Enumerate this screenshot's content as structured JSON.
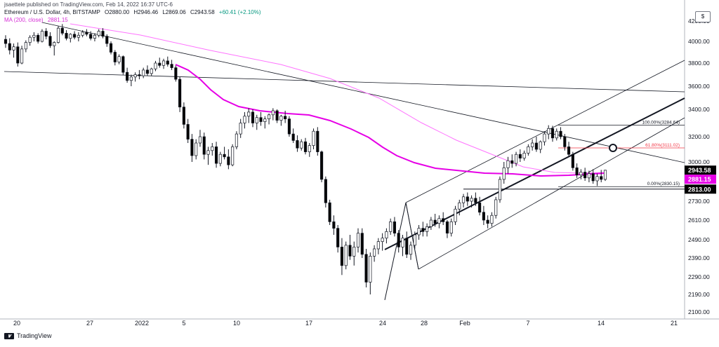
{
  "header": {
    "publish_line": "jsaettele published on TradingView.com, Feb 14, 2022 16:37 UTC-6",
    "symbol": "Ethereum / U.S. Dollar, 4h, BITSTAMP",
    "open": "O2880.00",
    "high": "H2946.46",
    "low": "L2869.06",
    "close": "C2943.58",
    "change": "+60.41 (+2.10%)",
    "ma_label": "MA (200, close)",
    "ma_value": "2881.15"
  },
  "footer": {
    "brand": "TradingView"
  },
  "axis_mark": "$",
  "colors": {
    "up": "#ffffff",
    "down": "#000000",
    "ma_fast": "#e600e6",
    "ma_slow": "#ff73ff",
    "fib_red": "#f23645",
    "trend": "#131722",
    "grid": "#f0f3fa"
  },
  "chart_data": {
    "type": "candlestick",
    "price_axis": {
      "ticks": [
        2100,
        2190,
        2290,
        2390,
        2490,
        2610,
        2730,
        3000,
        3200,
        3400,
        3600,
        3800,
        4000,
        4200
      ],
      "tick_labels": [
        "2100.00",
        "2190.00",
        "2290.00",
        "2390.00",
        "2490.00",
        "2610.00",
        "2730.00",
        "3000.00",
        "3200.00",
        "3400.00",
        "3600.00",
        "3800.00",
        "4000.00",
        "4200.00"
      ]
    },
    "time_axis": {
      "labels": [
        "20",
        "27",
        "2022",
        "5",
        "10",
        "17",
        "24",
        "28",
        "Feb",
        "7",
        "14",
        "21"
      ]
    },
    "price_badges": [
      {
        "value": 2943.58,
        "label": "2943.58",
        "bg": "#000000",
        "fg": "#ffffff"
      },
      {
        "value": 2881.15,
        "label": "2881.15",
        "bg": "#e600e6",
        "fg": "#ffffff"
      },
      {
        "value": 2813.0,
        "label": "2813.00",
        "bg": "#000000",
        "fg": "#ffffff"
      }
    ],
    "fibonacci": [
      {
        "label": "100.00%(3284.64)",
        "value": 3284.64,
        "color": "#131722"
      },
      {
        "label": "61.80%(3111.02)",
        "value": 3111.02,
        "color": "#f23645"
      },
      {
        "label": "0.00%(2830.15)",
        "value": 2830.15,
        "color": "#131722"
      }
    ],
    "horizontal_line": {
      "value": 2813.0
    },
    "candles": [
      {
        "o": 4020,
        "h": 4060,
        "l": 3940,
        "c": 3980
      },
      {
        "o": 3980,
        "h": 4030,
        "l": 3880,
        "c": 3920
      },
      {
        "o": 3920,
        "h": 3980,
        "l": 3850,
        "c": 3950
      },
      {
        "o": 3950,
        "h": 3990,
        "l": 3770,
        "c": 3800
      },
      {
        "o": 3800,
        "h": 3960,
        "l": 3790,
        "c": 3930
      },
      {
        "o": 3930,
        "h": 4010,
        "l": 3900,
        "c": 3990
      },
      {
        "o": 3990,
        "h": 4060,
        "l": 3960,
        "c": 4040
      },
      {
        "o": 4040,
        "h": 4090,
        "l": 4000,
        "c": 4060
      },
      {
        "o": 4060,
        "h": 4080,
        "l": 3980,
        "c": 4000
      },
      {
        "o": 4000,
        "h": 4120,
        "l": 3990,
        "c": 4100
      },
      {
        "o": 4100,
        "h": 4130,
        "l": 4020,
        "c": 4050
      },
      {
        "o": 4050,
        "h": 4090,
        "l": 3940,
        "c": 3960
      },
      {
        "o": 3960,
        "h": 4000,
        "l": 3870,
        "c": 3990
      },
      {
        "o": 3990,
        "h": 4150,
        "l": 3980,
        "c": 4130
      },
      {
        "o": 4130,
        "h": 4170,
        "l": 4060,
        "c": 4080
      },
      {
        "o": 4080,
        "h": 4110,
        "l": 4010,
        "c": 4030
      },
      {
        "o": 4030,
        "h": 4080,
        "l": 3990,
        "c": 4070
      },
      {
        "o": 4070,
        "h": 4100,
        "l": 4020,
        "c": 4040
      },
      {
        "o": 4040,
        "h": 4090,
        "l": 4000,
        "c": 4060
      },
      {
        "o": 4060,
        "h": 4110,
        "l": 4040,
        "c": 4090
      },
      {
        "o": 4090,
        "h": 4120,
        "l": 4050,
        "c": 4070
      },
      {
        "o": 4070,
        "h": 4100,
        "l": 4010,
        "c": 4030
      },
      {
        "o": 4030,
        "h": 4080,
        "l": 4000,
        "c": 4060
      },
      {
        "o": 4060,
        "h": 4120,
        "l": 4040,
        "c": 4100
      },
      {
        "o": 4100,
        "h": 4130,
        "l": 4030,
        "c": 4050
      },
      {
        "o": 4050,
        "h": 4070,
        "l": 3950,
        "c": 3980
      },
      {
        "o": 3980,
        "h": 4000,
        "l": 3880,
        "c": 3900
      },
      {
        "o": 3900,
        "h": 3920,
        "l": 3780,
        "c": 3810
      },
      {
        "o": 3810,
        "h": 3880,
        "l": 3790,
        "c": 3860
      },
      {
        "o": 3860,
        "h": 3870,
        "l": 3700,
        "c": 3720
      },
      {
        "o": 3720,
        "h": 3760,
        "l": 3630,
        "c": 3650
      },
      {
        "o": 3650,
        "h": 3700,
        "l": 3600,
        "c": 3680
      },
      {
        "o": 3680,
        "h": 3720,
        "l": 3640,
        "c": 3700
      },
      {
        "o": 3700,
        "h": 3740,
        "l": 3660,
        "c": 3690
      },
      {
        "o": 3690,
        "h": 3760,
        "l": 3670,
        "c": 3740
      },
      {
        "o": 3740,
        "h": 3780,
        "l": 3690,
        "c": 3710
      },
      {
        "o": 3710,
        "h": 3760,
        "l": 3690,
        "c": 3750
      },
      {
        "o": 3750,
        "h": 3820,
        "l": 3730,
        "c": 3800
      },
      {
        "o": 3800,
        "h": 3850,
        "l": 3760,
        "c": 3780
      },
      {
        "o": 3780,
        "h": 3840,
        "l": 3750,
        "c": 3820
      },
      {
        "o": 3820,
        "h": 3860,
        "l": 3770,
        "c": 3790
      },
      {
        "o": 3790,
        "h": 3830,
        "l": 3740,
        "c": 3760
      },
      {
        "o": 3760,
        "h": 3780,
        "l": 3640,
        "c": 3660
      },
      {
        "o": 3660,
        "h": 3680,
        "l": 3380,
        "c": 3420
      },
      {
        "o": 3420,
        "h": 3460,
        "l": 3260,
        "c": 3290
      },
      {
        "o": 3290,
        "h": 3330,
        "l": 3150,
        "c": 3180
      },
      {
        "o": 3180,
        "h": 3220,
        "l": 3000,
        "c": 3050
      },
      {
        "o": 3050,
        "h": 3180,
        "l": 3020,
        "c": 3150
      },
      {
        "o": 3150,
        "h": 3250,
        "l": 3120,
        "c": 3200
      },
      {
        "o": 3200,
        "h": 3230,
        "l": 3020,
        "c": 3060
      },
      {
        "o": 3060,
        "h": 3120,
        "l": 2980,
        "c": 3090
      },
      {
        "o": 3090,
        "h": 3150,
        "l": 3050,
        "c": 3120
      },
      {
        "o": 3120,
        "h": 3160,
        "l": 2960,
        "c": 2990
      },
      {
        "o": 2990,
        "h": 3080,
        "l": 2970,
        "c": 3060
      },
      {
        "o": 3060,
        "h": 3120,
        "l": 3020,
        "c": 3040
      },
      {
        "o": 3040,
        "h": 3100,
        "l": 2950,
        "c": 2980
      },
      {
        "o": 2980,
        "h": 3140,
        "l": 2970,
        "c": 3120
      },
      {
        "o": 3120,
        "h": 3240,
        "l": 3100,
        "c": 3220
      },
      {
        "o": 3220,
        "h": 3330,
        "l": 3190,
        "c": 3300
      },
      {
        "o": 3300,
        "h": 3380,
        "l": 3260,
        "c": 3350
      },
      {
        "o": 3350,
        "h": 3410,
        "l": 3300,
        "c": 3380
      },
      {
        "o": 3380,
        "h": 3400,
        "l": 3270,
        "c": 3300
      },
      {
        "o": 3300,
        "h": 3360,
        "l": 3250,
        "c": 3340
      },
      {
        "o": 3340,
        "h": 3380,
        "l": 3280,
        "c": 3310
      },
      {
        "o": 3310,
        "h": 3350,
        "l": 3260,
        "c": 3330
      },
      {
        "o": 3330,
        "h": 3370,
        "l": 3290,
        "c": 3360
      },
      {
        "o": 3360,
        "h": 3410,
        "l": 3320,
        "c": 3390
      },
      {
        "o": 3390,
        "h": 3400,
        "l": 3300,
        "c": 3320
      },
      {
        "o": 3320,
        "h": 3360,
        "l": 3280,
        "c": 3350
      },
      {
        "o": 3350,
        "h": 3390,
        "l": 3300,
        "c": 3330
      },
      {
        "o": 3330,
        "h": 3350,
        "l": 3200,
        "c": 3220
      },
      {
        "o": 3220,
        "h": 3260,
        "l": 3150,
        "c": 3170
      },
      {
        "o": 3170,
        "h": 3210,
        "l": 3080,
        "c": 3110
      },
      {
        "o": 3110,
        "h": 3180,
        "l": 3090,
        "c": 3160
      },
      {
        "o": 3160,
        "h": 3190,
        "l": 3060,
        "c": 3080
      },
      {
        "o": 3080,
        "h": 3150,
        "l": 3040,
        "c": 3130
      },
      {
        "o": 3130,
        "h": 3260,
        "l": 3100,
        "c": 3240
      },
      {
        "o": 3240,
        "h": 3270,
        "l": 3050,
        "c": 3080
      },
      {
        "o": 3080,
        "h": 3090,
        "l": 2860,
        "c": 2880
      },
      {
        "o": 2880,
        "h": 2900,
        "l": 2690,
        "c": 2720
      },
      {
        "o": 2720,
        "h": 2740,
        "l": 2580,
        "c": 2600
      },
      {
        "o": 2600,
        "h": 2640,
        "l": 2520,
        "c": 2560
      },
      {
        "o": 2560,
        "h": 2580,
        "l": 2420,
        "c": 2450
      },
      {
        "o": 2450,
        "h": 2500,
        "l": 2300,
        "c": 2350
      },
      {
        "o": 2350,
        "h": 2480,
        "l": 2330,
        "c": 2460
      },
      {
        "o": 2460,
        "h": 2520,
        "l": 2380,
        "c": 2400
      },
      {
        "o": 2400,
        "h": 2480,
        "l": 2350,
        "c": 2450
      },
      {
        "o": 2450,
        "h": 2560,
        "l": 2420,
        "c": 2530
      },
      {
        "o": 2530,
        "h": 2560,
        "l": 2390,
        "c": 2410
      },
      {
        "o": 2410,
        "h": 2440,
        "l": 2230,
        "c": 2260
      },
      {
        "o": 2260,
        "h": 2420,
        "l": 2190,
        "c": 2400
      },
      {
        "o": 2400,
        "h": 2460,
        "l": 2370,
        "c": 2440
      },
      {
        "o": 2440,
        "h": 2500,
        "l": 2410,
        "c": 2480
      },
      {
        "o": 2480,
        "h": 2530,
        "l": 2430,
        "c": 2500
      },
      {
        "o": 2500,
        "h": 2560,
        "l": 2470,
        "c": 2540
      },
      {
        "o": 2540,
        "h": 2620,
        "l": 2520,
        "c": 2600
      },
      {
        "o": 2600,
        "h": 2630,
        "l": 2510,
        "c": 2530
      },
      {
        "o": 2530,
        "h": 2550,
        "l": 2420,
        "c": 2450
      },
      {
        "o": 2450,
        "h": 2520,
        "l": 2400,
        "c": 2500
      },
      {
        "o": 2500,
        "h": 2540,
        "l": 2390,
        "c": 2410
      },
      {
        "o": 2410,
        "h": 2480,
        "l": 2380,
        "c": 2460
      },
      {
        "o": 2460,
        "h": 2540,
        "l": 2440,
        "c": 2520
      },
      {
        "o": 2520,
        "h": 2580,
        "l": 2490,
        "c": 2560
      },
      {
        "o": 2560,
        "h": 2600,
        "l": 2510,
        "c": 2540
      },
      {
        "o": 2540,
        "h": 2590,
        "l": 2510,
        "c": 2570
      },
      {
        "o": 2570,
        "h": 2630,
        "l": 2550,
        "c": 2610
      },
      {
        "o": 2610,
        "h": 2650,
        "l": 2570,
        "c": 2590
      },
      {
        "o": 2590,
        "h": 2640,
        "l": 2560,
        "c": 2620
      },
      {
        "o": 2620,
        "h": 2660,
        "l": 2580,
        "c": 2600
      },
      {
        "o": 2600,
        "h": 2610,
        "l": 2500,
        "c": 2530
      },
      {
        "o": 2530,
        "h": 2620,
        "l": 2510,
        "c": 2600
      },
      {
        "o": 2600,
        "h": 2700,
        "l": 2580,
        "c": 2680
      },
      {
        "o": 2680,
        "h": 2740,
        "l": 2640,
        "c": 2720
      },
      {
        "o": 2720,
        "h": 2780,
        "l": 2690,
        "c": 2760
      },
      {
        "o": 2760,
        "h": 2790,
        "l": 2700,
        "c": 2730
      },
      {
        "o": 2730,
        "h": 2770,
        "l": 2690,
        "c": 2750
      },
      {
        "o": 2750,
        "h": 2790,
        "l": 2700,
        "c": 2720
      },
      {
        "o": 2720,
        "h": 2760,
        "l": 2640,
        "c": 2660
      },
      {
        "o": 2660,
        "h": 2700,
        "l": 2580,
        "c": 2610
      },
      {
        "o": 2610,
        "h": 2640,
        "l": 2560,
        "c": 2590
      },
      {
        "o": 2590,
        "h": 2660,
        "l": 2570,
        "c": 2640
      },
      {
        "o": 2640,
        "h": 2760,
        "l": 2620,
        "c": 2740
      },
      {
        "o": 2740,
        "h": 2900,
        "l": 2720,
        "c": 2880
      },
      {
        "o": 2880,
        "h": 3000,
        "l": 2850,
        "c": 2960
      },
      {
        "o": 2960,
        "h": 3040,
        "l": 2920,
        "c": 3010
      },
      {
        "o": 3010,
        "h": 3060,
        "l": 2960,
        "c": 2990
      },
      {
        "o": 2990,
        "h": 3080,
        "l": 2970,
        "c": 3060
      },
      {
        "o": 3060,
        "h": 3100,
        "l": 3000,
        "c": 3030
      },
      {
        "o": 3030,
        "h": 3090,
        "l": 3010,
        "c": 3070
      },
      {
        "o": 3070,
        "h": 3140,
        "l": 3050,
        "c": 3120
      },
      {
        "o": 3120,
        "h": 3180,
        "l": 3090,
        "c": 3150
      },
      {
        "o": 3150,
        "h": 3200,
        "l": 3080,
        "c": 3100
      },
      {
        "o": 3100,
        "h": 3170,
        "l": 3070,
        "c": 3160
      },
      {
        "o": 3160,
        "h": 3240,
        "l": 3130,
        "c": 3220
      },
      {
        "o": 3220,
        "h": 3284,
        "l": 3180,
        "c": 3260
      },
      {
        "o": 3260,
        "h": 3280,
        "l": 3160,
        "c": 3190
      },
      {
        "o": 3190,
        "h": 3260,
        "l": 3170,
        "c": 3240
      },
      {
        "o": 3240,
        "h": 3270,
        "l": 3180,
        "c": 3200
      },
      {
        "o": 3200,
        "h": 3220,
        "l": 3090,
        "c": 3120
      },
      {
        "o": 3120,
        "h": 3160,
        "l": 3040,
        "c": 3060
      },
      {
        "o": 3060,
        "h": 3080,
        "l": 2940,
        "c": 2960
      },
      {
        "o": 2960,
        "h": 2990,
        "l": 2890,
        "c": 2910
      },
      {
        "o": 2910,
        "h": 2950,
        "l": 2880,
        "c": 2930
      },
      {
        "o": 2930,
        "h": 2960,
        "l": 2870,
        "c": 2890
      },
      {
        "o": 2890,
        "h": 2940,
        "l": 2860,
        "c": 2920
      },
      {
        "o": 2920,
        "h": 2950,
        "l": 2850,
        "c": 2870
      },
      {
        "o": 2870,
        "h": 2920,
        "l": 2835,
        "c": 2900
      },
      {
        "o": 2900,
        "h": 2945,
        "l": 2860,
        "c": 2880
      },
      {
        "o": 2880,
        "h": 2946,
        "l": 2869,
        "c": 2943
      }
    ]
  }
}
